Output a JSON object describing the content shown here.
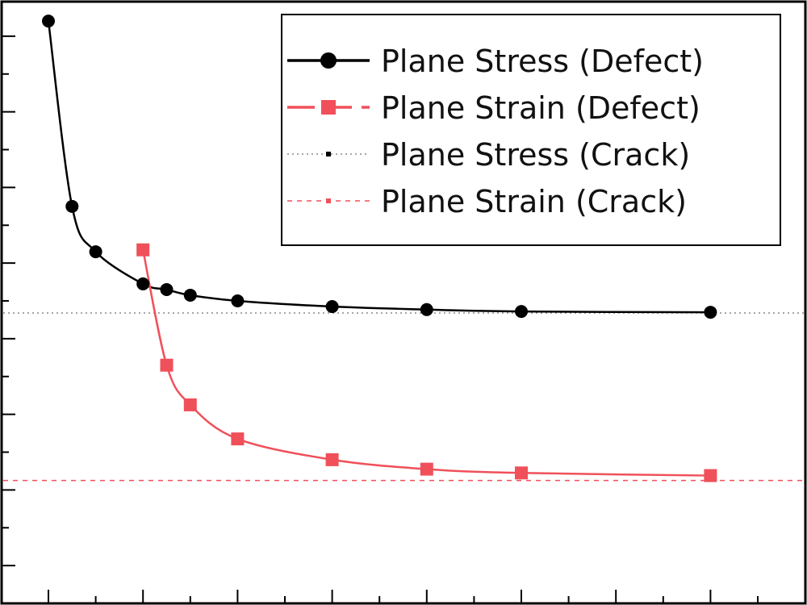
{
  "chart_data": {
    "type": "line",
    "title": "",
    "xlabel": "",
    "ylabel": "",
    "x_axis": {
      "range": [
        0,
        15.5
      ],
      "major_ticks": [
        0,
        2,
        4,
        6,
        8,
        10,
        12,
        14
      ],
      "minor_ticks": [
        1,
        3,
        5,
        7,
        9,
        11,
        13,
        15
      ]
    },
    "y_axis": {
      "range": [
        0,
        16
      ],
      "major_ticks": [
        1,
        3,
        5,
        7,
        9,
        11,
        13,
        15
      ],
      "minor_ticks": [
        2,
        4,
        6,
        8,
        10,
        12,
        14
      ]
    },
    "grid": false,
    "legend_position": "top-right",
    "series": [
      {
        "name": "Plane Stress (Defect)",
        "color": "#000000",
        "marker": "circle",
        "line_style": "solid",
        "x": [
          0,
          0.5,
          1,
          2,
          2.5,
          3,
          4,
          6,
          8,
          10,
          14
        ],
        "y": [
          15.4,
          10.5,
          9.3,
          8.45,
          8.3,
          8.15,
          8.0,
          7.85,
          7.77,
          7.72,
          7.7
        ]
      },
      {
        "name": "Plane Strain (Defect)",
        "color": "#f0505a",
        "marker": "square",
        "line_style": "solid",
        "x": [
          2,
          2.5,
          3,
          4,
          6,
          8,
          10,
          14
        ],
        "y": [
          9.35,
          6.3,
          5.25,
          4.35,
          3.8,
          3.55,
          3.45,
          3.38
        ]
      },
      {
        "name": "Plane Stress (Crack)",
        "color": "#888888",
        "marker": "none",
        "line_style": "dotted",
        "y_constant": 7.68
      },
      {
        "name": "Plane Strain (Crack)",
        "color": "#f0505a",
        "marker": "none",
        "line_style": "dashed",
        "y_constant": 3.25
      }
    ]
  }
}
